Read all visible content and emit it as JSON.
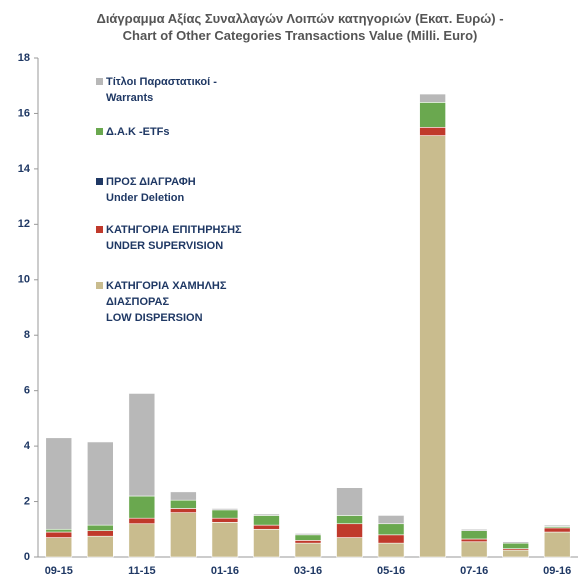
{
  "chart_data": {
    "type": "stacked_bar",
    "title": "Διάγραμμα Αξίας Συναλλαγών Λοιπών κατηγοριών (Εκατ.  Ευρώ) -\nChart of Other Categories Transactions Value (Milli. Euro)",
    "categories": [
      "09-15",
      null,
      "11-15",
      null,
      "01-16",
      null,
      "03-16",
      null,
      "05-16",
      null,
      "07-16",
      null,
      "09-16"
    ],
    "series": [
      {
        "name": "ΚΑΤΗΓΟΡΙΑ ΧΑΜΗΛΗΣ\nΔΙΑΣΠΟΡΑΣ\nLOW DISPERSION",
        "color": "#c9bc8e",
        "values": [
          0.7,
          0.75,
          1.2,
          1.6,
          1.25,
          1.0,
          0.5,
          0.7,
          0.5,
          15.2,
          0.55,
          0.25,
          0.9
        ]
      },
      {
        "name": "ΚΑΤΗΓΟΡΙΑ ΕΠΙΤΗΡΗΣΗΣ\nUNDER SUPERVISION",
        "color": "#c0392b",
        "values": [
          0.2,
          0.2,
          0.2,
          0.15,
          0.15,
          0.15,
          0.1,
          0.5,
          0.3,
          0.3,
          0.1,
          0.05,
          0.15
        ]
      },
      {
        "name": "ΠΡΟΣ ΔΙΑΓΡΑΦΗ\nUnder Deletion",
        "color": "#1f3864",
        "values": [
          0,
          0,
          0,
          0,
          0,
          0,
          0,
          0,
          0,
          0,
          0,
          0,
          0
        ]
      },
      {
        "name": "Δ.Α.Κ -ETFs",
        "color": "#6aa84f",
        "values": [
          0.1,
          0.2,
          0.8,
          0.3,
          0.3,
          0.35,
          0.2,
          0.3,
          0.4,
          0.9,
          0.3,
          0.2,
          0.05
        ]
      },
      {
        "name": "Τίτλοι Παραστατικοί -\nWarrants",
        "color": "#b8b8b8",
        "values": [
          3.3,
          3.0,
          3.7,
          0.3,
          0.05,
          0.05,
          0.05,
          1.0,
          0.3,
          0.3,
          0.05,
          0.05,
          0.05
        ]
      }
    ],
    "ylim": [
      0,
      18
    ],
    "yticks": [
      0,
      2,
      4,
      6,
      8,
      10,
      12,
      14,
      16,
      18
    ],
    "grid": false
  }
}
